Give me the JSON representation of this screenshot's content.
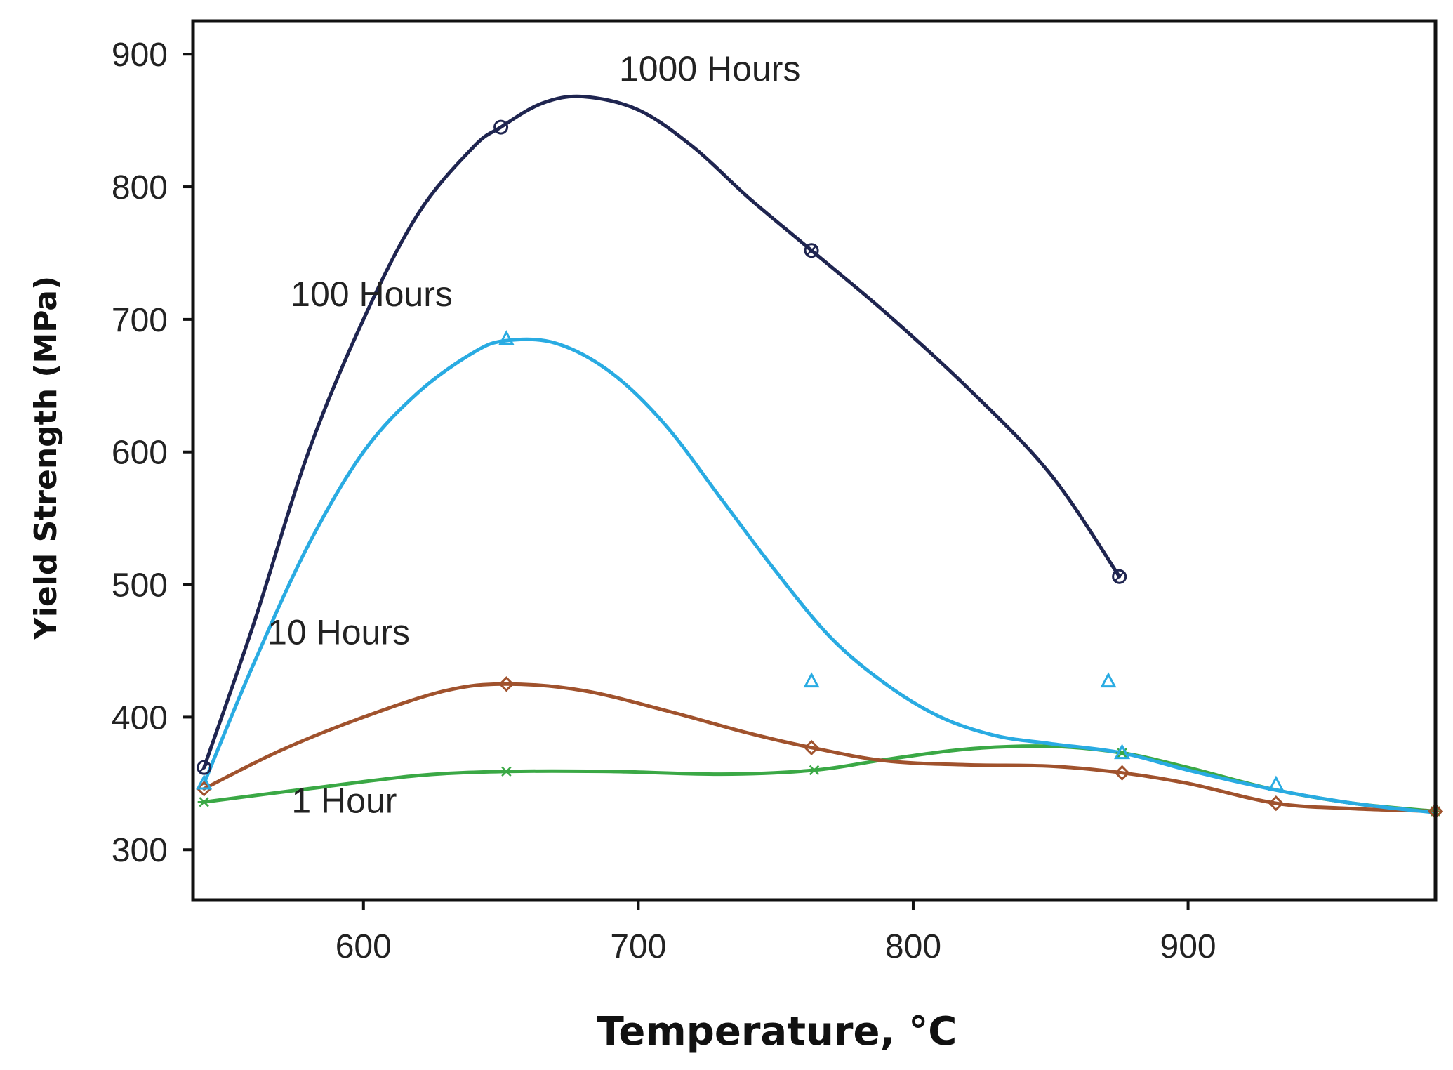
{
  "chart_data": {
    "type": "line",
    "xlabel": "Temperature, °C",
    "ylabel": "Yield Strength (MPa)",
    "xlim": [
      538,
      990
    ],
    "ylim": [
      262,
      925
    ],
    "xticks": [
      600,
      700,
      800,
      900
    ],
    "yticks": [
      300,
      400,
      500,
      600,
      700,
      800,
      900
    ],
    "grid": false,
    "series": [
      {
        "name": "1000 Hours",
        "color": "#1f2550",
        "marker": "circle",
        "label_at": [
          726,
          880
        ],
        "x": [
          542,
          650,
          763,
          875
        ],
        "y": [
          362,
          845,
          752,
          506
        ],
        "curve_x": [
          542,
          560,
          580,
          600,
          620,
          640,
          650,
          665,
          680,
          700,
          720,
          740,
          763,
          790,
          820,
          850,
          875
        ],
        "curve_y": [
          362,
          470,
          600,
          700,
          780,
          830,
          845,
          863,
          868,
          858,
          830,
          792,
          752,
          705,
          648,
          583,
          506
        ]
      },
      {
        "name": "100 Hours",
        "color": "#29abe2",
        "marker": "triangle",
        "label_at": [
          603,
          710
        ],
        "x": [
          542,
          652,
          763,
          871,
          876,
          932
        ],
        "y": [
          350,
          685,
          427,
          427,
          373,
          349
        ],
        "curve_x": [
          542,
          560,
          580,
          600,
          620,
          640,
          652,
          670,
          690,
          710,
          730,
          750,
          770,
          790,
          810,
          830,
          850,
          876,
          900,
          932,
          960,
          990
        ],
        "curve_y": [
          350,
          440,
          530,
          600,
          645,
          675,
          684,
          682,
          660,
          620,
          565,
          510,
          460,
          425,
          400,
          386,
          380,
          373,
          360,
          345,
          335,
          328
        ]
      },
      {
        "name": "10 Hours",
        "color": "#a0522d",
        "marker": "diamond",
        "label_at": [
          591,
          455
        ],
        "x": [
          542,
          652,
          763,
          876,
          932,
          990
        ],
        "y": [
          346,
          425,
          377,
          358,
          335,
          329
        ],
        "curve_x": [
          542,
          570,
          600,
          630,
          652,
          680,
          710,
          740,
          763,
          790,
          820,
          850,
          876,
          900,
          932,
          960,
          990
        ],
        "curve_y": [
          346,
          375,
          400,
          420,
          425,
          420,
          405,
          388,
          377,
          367,
          364,
          363,
          358,
          350,
          335,
          331,
          329
        ]
      },
      {
        "name": "1 Hour",
        "color": "#3aa845",
        "marker": "star",
        "label_at": [
          593,
          328
        ],
        "x": [
          542,
          652,
          764,
          876,
          990
        ],
        "y": [
          336,
          359,
          360,
          373,
          329
        ],
        "curve_x": [
          542,
          580,
          620,
          652,
          690,
          730,
          764,
          790,
          820,
          850,
          876,
          900,
          930,
          960,
          990
        ],
        "curve_y": [
          336,
          346,
          356,
          359,
          359,
          357,
          360,
          368,
          376,
          378,
          373,
          362,
          346,
          335,
          329
        ]
      }
    ]
  }
}
